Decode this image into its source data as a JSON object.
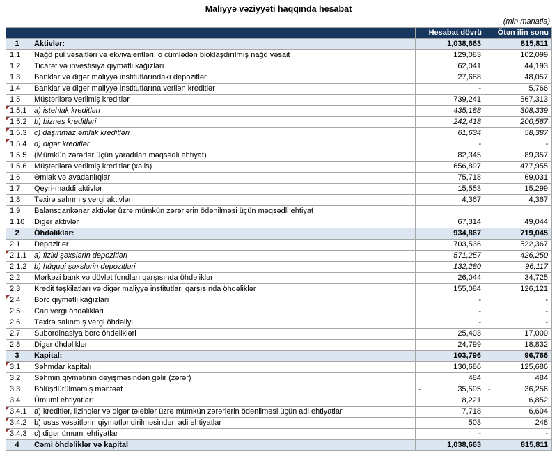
{
  "title": "Maliyyə vəziyyəti haqqında hesabat",
  "unit_note": "(min manatla)",
  "columns": {
    "current": "Hesabat dövrü",
    "previous": "Ötən ilin sonu"
  },
  "colors": {
    "header_bg": "#17375E",
    "header_text": "#FFFFFF",
    "section_bg": "#DCE6F1",
    "border": "#A6A6A6",
    "marker": "#943634"
  },
  "rows": [
    {
      "num": "1",
      "label": "Aktivlər:",
      "v1": "1,038,663",
      "v2": "815,811",
      "type": "section"
    },
    {
      "num": "1.1",
      "label": "Nağd pul vəsaitləri və ekvivalentləri, o cümlədən bloklaşdırılmış nağd vəsait",
      "v1": "129,083",
      "v2": "102,099",
      "type": "normal"
    },
    {
      "num": "1.2",
      "label": "Ticarət və investisiya qiymətli kağızları",
      "v1": "62,041",
      "v2": "44,193",
      "type": "normal"
    },
    {
      "num": "1.3",
      "label": "Banklar və digər maliyyə institutlarındakı depozitlər",
      "v1": "27,688",
      "v2": "48,057",
      "type": "normal"
    },
    {
      "num": "1.4",
      "label": "Banklar və digər maliyyə institutlarına verilən kreditlər",
      "v1": "-",
      "v2": "5,766",
      "type": "normal"
    },
    {
      "num": "1.5",
      "label": "Müştərilərə verilmiş kreditlər",
      "v1": "739,241",
      "v2": "567,313",
      "type": "normal"
    },
    {
      "num": "1.5.1",
      "label": "a) istehlak kreditləri",
      "v1": "435,188",
      "v2": "308,339",
      "type": "sub",
      "marker": true
    },
    {
      "num": "1.5.2",
      "label": "b) biznes kreditləri",
      "v1": "242,418",
      "v2": "200,587",
      "type": "sub",
      "marker": true
    },
    {
      "num": "1.5.3",
      "label": "c) daşınmaz əmlak kreditləri",
      "v1": "61,634",
      "v2": "58,387",
      "type": "sub",
      "marker": true
    },
    {
      "num": "1.5.4",
      "label": "d) digər kreditlər",
      "v1": "-",
      "v2": "-",
      "type": "sub",
      "marker": true
    },
    {
      "num": "1.5.5",
      "label": "(Mümkün zərərlər üçün yaradılan məqsədli ehtiyat)",
      "v1": "82,345",
      "v2": "89,357",
      "type": "normal"
    },
    {
      "num": "1.5.6",
      "label": "Müştərilərə verilmiş kreditlər (xalis)",
      "v1": "656,897",
      "v2": "477,955",
      "type": "normal"
    },
    {
      "num": "1.6",
      "label": "Əmlak və avadanlıqlar",
      "v1": "75,718",
      "v2": "69,031",
      "type": "normal"
    },
    {
      "num": "1.7",
      "label": "Qeyri-maddi aktivlər",
      "v1": "15,553",
      "v2": "15,299",
      "type": "normal"
    },
    {
      "num": "1.8",
      "label": "Təxirə salınmış vergi aktivləri",
      "v1": "4,367",
      "v2": "4,367",
      "type": "normal"
    },
    {
      "num": "1.9",
      "label": "Balansdankənar aktivlər üzrə mümkün zərərlərin ödənilməsi üçün məqsədli ehtiyat",
      "v1": "",
      "v2": "",
      "type": "normal"
    },
    {
      "num": "1.10",
      "label": "Digər aktivlər",
      "v1": "67,314",
      "v2": "49,044",
      "type": "normal"
    },
    {
      "num": "2",
      "label": "Öhdəliklər:",
      "v1": "934,867",
      "v2": "719,045",
      "type": "section"
    },
    {
      "num": "2.1",
      "label": "Depozitlər",
      "v1": "703,536",
      "v2": "522,367",
      "type": "normal"
    },
    {
      "num": "2.1.1",
      "label": "a) fiziki şəxslərin depozitləri",
      "v1": "571,257",
      "v2": "426,250",
      "type": "sub",
      "marker": true
    },
    {
      "num": "2.1.2",
      "label": "b) hüquqi şəxslərin depozitləri",
      "v1": "132,280",
      "v2": "96,117",
      "type": "sub"
    },
    {
      "num": "2.2",
      "label": "Mərkəzi bank və dövlət fondları qarşısında öhdəliklər",
      "v1": "26,044",
      "v2": "34,725",
      "type": "normal"
    },
    {
      "num": "2.3",
      "label": "Kredit təşkilatları və digər maliyyə institutları qarşısında öhdəliklər",
      "v1": "155,084",
      "v2": "126,121",
      "type": "normal"
    },
    {
      "num": "2.4",
      "label": "Borc qiymətli kağızları",
      "v1": "-",
      "v2": "-",
      "type": "normal",
      "marker": true
    },
    {
      "num": "2.5",
      "label": "Cari vergi öhdəlikləri",
      "v1": "-",
      "v2": "-",
      "type": "normal"
    },
    {
      "num": "2.6",
      "label": "Təxirə salınmış vergi öhdəliyi",
      "v1": "-",
      "v2": "-",
      "type": "normal"
    },
    {
      "num": "2.7",
      "label": "Subordinasiya borc öhdəlikləri",
      "v1": "25,403",
      "v2": "17,000",
      "type": "normal"
    },
    {
      "num": "2.8",
      "label": "Digər öhdəliklər",
      "v1": "24,799",
      "v2": "18,832",
      "type": "normal"
    },
    {
      "num": "3",
      "label": "Kapital:",
      "v1": "103,796",
      "v2": "96,766",
      "type": "section"
    },
    {
      "num": "3.1",
      "label": "Səhmdar kapitalı",
      "v1": "130,686",
      "v2": "125,686",
      "type": "normal",
      "marker": true
    },
    {
      "num": "3.2",
      "label": "Səhmin qiymətinin dəyişməsindən gəlir (zərər)",
      "v1": "484",
      "v2": "484",
      "type": "normal"
    },
    {
      "num": "3.3",
      "label": "Bölüşdürülməmiş mənfəət",
      "v1": "35,595",
      "neg1": true,
      "v2": "36,256",
      "neg2": true,
      "type": "normal"
    },
    {
      "num": "3.4",
      "label": "Ümumi ehtiyatlar:",
      "v1": "8,221",
      "v2": "6,852",
      "type": "normal"
    },
    {
      "num": "3.4.1",
      "label": "a) kreditlər, lizinqlər və digər tələblər üzrə mümkün zərərlərin ödənilməsi üçün adi ehtiyatlar",
      "v1": "7,718",
      "v2": "6,604",
      "type": "normal",
      "marker": true
    },
    {
      "num": "3.4.2",
      "label": "b) əsas vəsaitlərin qiymətləndirilməsindən adi ehtiyatlar",
      "v1": "503",
      "v2": "248",
      "type": "normal",
      "marker": true
    },
    {
      "num": "3.4.3",
      "label": "c) digər ümumi ehtiyatlar",
      "v1": "-",
      "v2": "-",
      "type": "normal",
      "marker": true
    },
    {
      "num": "4",
      "label": "Cəmi öhdəliklər və kapital",
      "v1": "1,038,663",
      "v2": "815,811",
      "type": "section"
    }
  ]
}
